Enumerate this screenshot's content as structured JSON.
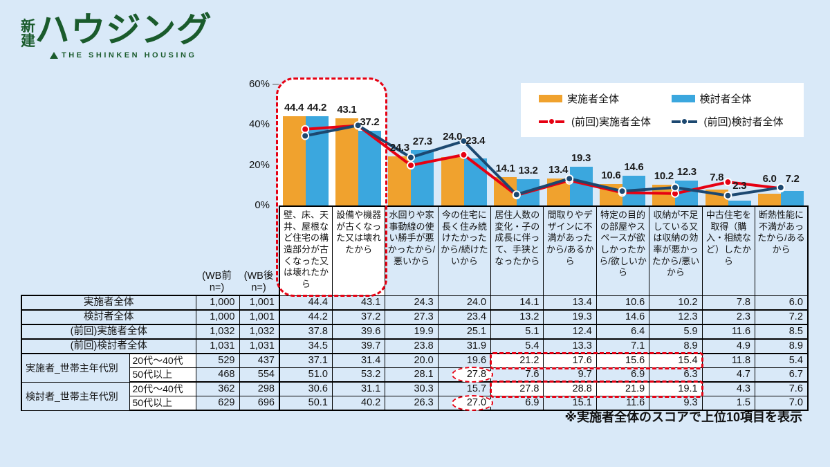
{
  "logo": {
    "mark_top": "新",
    "mark_bottom": "建",
    "name": "ハウジング",
    "tagline": "THE SHINKEN HOUSING"
  },
  "colors": {
    "page_bg": "#d9e9f8",
    "bar_orange": "#f0a22e",
    "bar_blue": "#3ba7de",
    "line_red": "#e60012",
    "line_navy": "#1c4870",
    "logo_green": "#1a5b2c",
    "highlight_red": "#e60012"
  },
  "note": "※実施者全体のスコアで上位10項目を表示",
  "chart_data": {
    "type": "bar",
    "title": "",
    "xlabel": "",
    "ylabel": "",
    "ylim": [
      0,
      60
    ],
    "grid": false,
    "legend_position": "top-right",
    "yticks": [
      {
        "v": 0,
        "label": "0%"
      },
      {
        "v": 20,
        "label": "20%"
      },
      {
        "v": 40,
        "label": "40%"
      },
      {
        "v": 60,
        "label": "60%"
      }
    ],
    "categories": [
      "壁、床、天井、屋根など住宅の構造部分が古くなった又は壊れたから",
      "設備や機器が古くなった又は壊れたから",
      "水回りや家事動線の使い勝手が悪かったから/悪いから",
      "今の住宅に長く住み続けたかったから/続けたいから",
      "居住人数の変化・子の成長に伴って、手狭となったから",
      "間取りやデザインに不満があったから/あるから",
      "特定の目的の部屋やスペースが欲しかったから/欲しいから",
      "収納が不足している又は収納の効率が悪かったから/悪いから",
      "中古住宅を取得（購入・相続など）したから",
      "断熱性能に不満があったから/あるから"
    ],
    "series": [
      {
        "name": "実施者全体",
        "style": "bar",
        "color": "#f0a22e",
        "values": [
          44.4,
          43.1,
          24.3,
          24.0,
          14.1,
          13.4,
          10.6,
          10.2,
          7.8,
          6.0
        ]
      },
      {
        "name": "検討者全体",
        "style": "bar",
        "color": "#3ba7de",
        "values": [
          44.2,
          37.2,
          27.3,
          23.4,
          13.2,
          19.3,
          14.6,
          12.3,
          2.3,
          7.2
        ]
      },
      {
        "name": "(前回)実施者全体",
        "style": "line",
        "color": "#e60012",
        "values": [
          37.8,
          39.6,
          19.9,
          25.1,
          5.1,
          12.4,
          6.4,
          5.9,
          11.6,
          8.5
        ]
      },
      {
        "name": "(前回)検討者全体",
        "style": "line",
        "color": "#1c4870",
        "values": [
          34.5,
          39.7,
          23.8,
          31.9,
          5.4,
          13.3,
          7.1,
          8.9,
          4.9,
          8.9
        ]
      }
    ],
    "highlight_box_categories": [
      0,
      1
    ],
    "label_dy": {
      "1": [
        0,
        8
      ],
      "3": [
        6,
        12
      ],
      "8": [
        6,
        18
      ]
    }
  },
  "table": {
    "n_col_headers": [
      {
        "line1": "(WB前",
        "line2": "n=)"
      },
      {
        "line1": "(WB後",
        "line2": "n=)"
      }
    ],
    "rows": [
      {
        "label": "実施者全体",
        "n1": "1,000",
        "n2": "1,001",
        "sep": true,
        "values": [
          44.4,
          43.1,
          24.3,
          24.0,
          14.1,
          13.4,
          10.6,
          10.2,
          7.8,
          6.0
        ]
      },
      {
        "label": "検討者全体",
        "n1": "1,000",
        "n2": "1,001",
        "sep": true,
        "values": [
          44.2,
          37.2,
          27.3,
          23.4,
          13.2,
          19.3,
          14.6,
          12.3,
          2.3,
          7.2
        ]
      },
      {
        "label": "(前回)実施者全体",
        "n1": "1,032",
        "n2": "1,032",
        "sep": true,
        "values": [
          37.8,
          39.6,
          19.9,
          25.1,
          5.1,
          12.4,
          6.4,
          5.9,
          11.6,
          8.5
        ]
      },
      {
        "label": "(前回)検討者全体",
        "n1": "1,031",
        "n2": "1,031",
        "sep": true,
        "values": [
          34.5,
          39.7,
          23.8,
          31.9,
          5.4,
          13.3,
          7.1,
          8.9,
          4.9,
          8.9
        ]
      },
      {
        "group": "実施者_世帯主年代別",
        "sub": "20代〜40代",
        "n1": "529",
        "n2": "437",
        "values": [
          37.1,
          31.4,
          20.0,
          19.6,
          21.2,
          17.6,
          15.6,
          15.4,
          11.8,
          5.4
        ],
        "hl_cols": [
          4,
          5,
          6,
          7
        ]
      },
      {
        "sub": "50代以上",
        "n1": "468",
        "n2": "554",
        "sep": true,
        "values": [
          51.0,
          53.2,
          28.1,
          27.8,
          7.6,
          9.7,
          6.9,
          6.3,
          4.7,
          6.7
        ],
        "ellipse_col": 3
      },
      {
        "group": "検討者_世帯主年代別",
        "sub": "20代〜40代",
        "n1": "362",
        "n2": "298",
        "values": [
          30.6,
          31.1,
          30.3,
          15.7,
          27.8,
          28.8,
          21.9,
          19.1,
          4.3,
          7.6
        ],
        "hl_cols": [
          4,
          5,
          6,
          7
        ]
      },
      {
        "sub": "50代以上",
        "n1": "629",
        "n2": "696",
        "values": [
          50.1,
          40.2,
          26.3,
          27.0,
          6.9,
          15.1,
          11.6,
          9.3,
          1.5,
          7.0
        ],
        "ellipse_col": 3
      }
    ]
  }
}
